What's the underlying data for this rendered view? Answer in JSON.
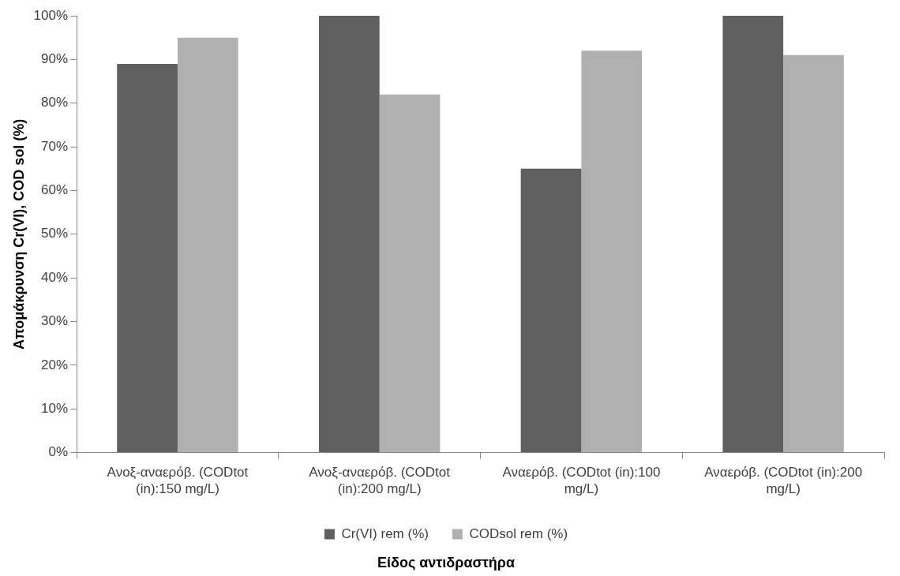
{
  "chart_data": {
    "type": "bar",
    "xlabel": "Είδος αντιδραστήρα",
    "ylabel": "Απομάκρυνση Cr(VI), COD sol (%)",
    "categories": [
      "Ανοξ-αναερόβ. (CODtot (in):150 mg/L)",
      "Ανοξ-αναερόβ. (CODtot (in):200 mg/L)",
      "Αναερόβ. (CODtot (in):100 mg/L)",
      "Αναερόβ. (CODtot (in):200 mg/L)"
    ],
    "series": [
      {
        "name": "Cr(VI) rem (%)",
        "color": "#5f5f5f",
        "values": [
          89,
          100,
          65,
          100
        ]
      },
      {
        "name": "CODsol rem (%)",
        "color": "#b0b0b0",
        "values": [
          95,
          82,
          92,
          91
        ]
      }
    ],
    "ylim": [
      0,
      100
    ],
    "yticks": [
      {
        "value": 0,
        "label": "0%"
      },
      {
        "value": 10,
        "label": "10%"
      },
      {
        "value": 20,
        "label": "20%"
      },
      {
        "value": 30,
        "label": "30%"
      },
      {
        "value": 40,
        "label": "40%"
      },
      {
        "value": 50,
        "label": "50%"
      },
      {
        "value": 60,
        "label": "60%"
      },
      {
        "value": 70,
        "label": "70%"
      },
      {
        "value": 80,
        "label": "80%"
      },
      {
        "value": 90,
        "label": "90%"
      },
      {
        "value": 100,
        "label": "100%"
      }
    ],
    "grid": false,
    "legend": "bottom"
  }
}
